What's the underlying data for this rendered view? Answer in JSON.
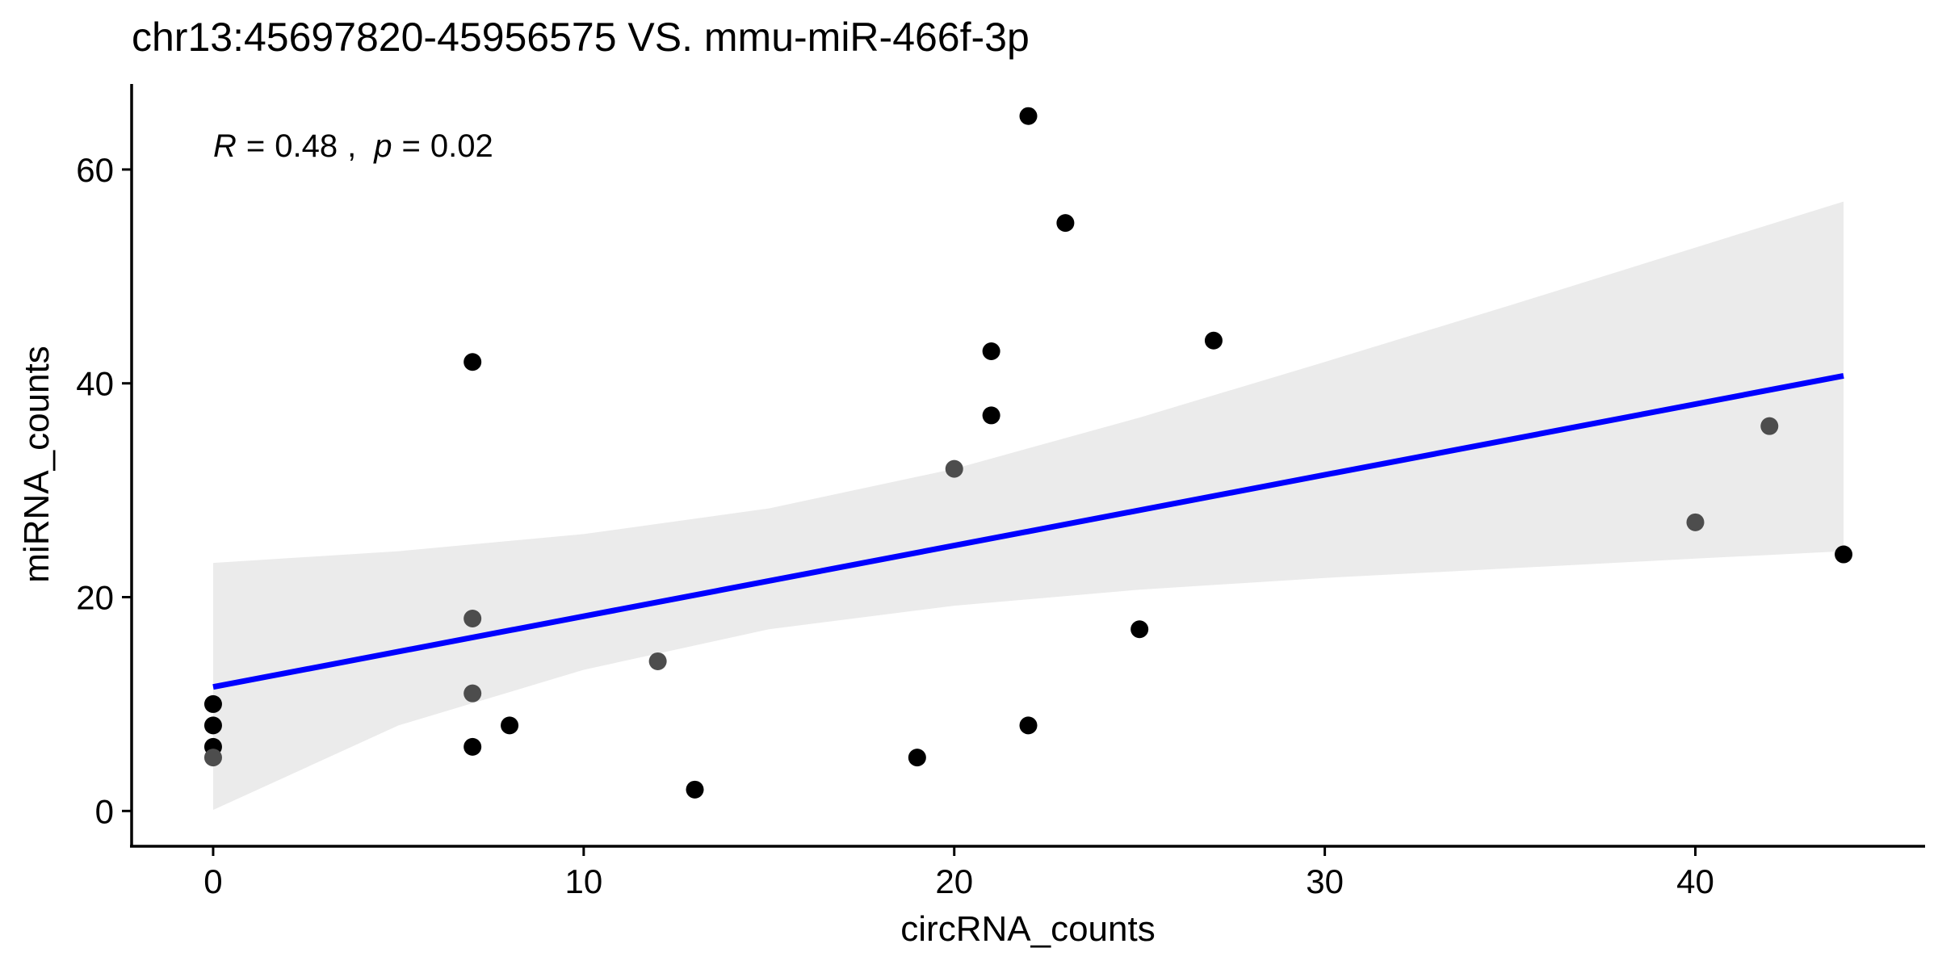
{
  "chart_data": {
    "type": "scatter",
    "title": "chr13:45697820-45956575 VS. mmu-miR-466f-3p",
    "xlabel": "circRNA_counts",
    "ylabel": "miRNA_counts",
    "xlim": [
      -2.2,
      46.2
    ],
    "ylim": [
      -3.3,
      68.0
    ],
    "x_ticks": [
      0,
      10,
      20,
      30,
      40
    ],
    "y_ticks": [
      0,
      20,
      40,
      60
    ],
    "grid": false,
    "legend": "none",
    "annotation": {
      "r_symbol": "R",
      "r_value": "0.48",
      "p_symbol": "p",
      "p_value": "0.02",
      "equals": "=",
      "separator": ","
    },
    "points": [
      {
        "x": 0,
        "y": 10,
        "shade": "dark"
      },
      {
        "x": 0,
        "y": 8,
        "shade": "dark"
      },
      {
        "x": 0,
        "y": 6,
        "shade": "dark"
      },
      {
        "x": 0,
        "y": 5,
        "shade": "gray"
      },
      {
        "x": 7,
        "y": 42,
        "shade": "dark"
      },
      {
        "x": 7,
        "y": 18,
        "shade": "gray"
      },
      {
        "x": 7,
        "y": 11,
        "shade": "gray"
      },
      {
        "x": 7,
        "y": 6,
        "shade": "dark"
      },
      {
        "x": 8,
        "y": 8,
        "shade": "dark"
      },
      {
        "x": 12,
        "y": 14,
        "shade": "gray"
      },
      {
        "x": 13,
        "y": 2,
        "shade": "dark"
      },
      {
        "x": 19,
        "y": 5,
        "shade": "dark"
      },
      {
        "x": 20,
        "y": 32,
        "shade": "gray"
      },
      {
        "x": 21,
        "y": 43,
        "shade": "dark"
      },
      {
        "x": 21,
        "y": 37,
        "shade": "dark"
      },
      {
        "x": 22,
        "y": 65,
        "shade": "dark"
      },
      {
        "x": 22,
        "y": 8,
        "shade": "dark"
      },
      {
        "x": 23,
        "y": 55,
        "shade": "dark"
      },
      {
        "x": 25,
        "y": 17,
        "shade": "dark"
      },
      {
        "x": 27,
        "y": 44,
        "shade": "dark"
      },
      {
        "x": 40,
        "y": 27,
        "shade": "gray"
      },
      {
        "x": 42,
        "y": 36,
        "shade": "gray"
      },
      {
        "x": 44,
        "y": 24,
        "shade": "dark"
      }
    ],
    "fit_line": {
      "x": [
        0,
        44
      ],
      "y": [
        11.6,
        40.7
      ]
    },
    "confidence_band": {
      "x": [
        0,
        5,
        10,
        15,
        20,
        25,
        30,
        35,
        40,
        44
      ],
      "upper": [
        23.2,
        24.3,
        25.9,
        28.3,
        32.0,
        36.8,
        42.0,
        47.3,
        52.7,
        57.0
      ],
      "lower": [
        0.1,
        8.0,
        13.2,
        17.0,
        19.2,
        20.7,
        21.8,
        22.7,
        23.6,
        24.3
      ]
    },
    "colors": {
      "point_dark": "#000000",
      "point_gray": "#4d4d4d",
      "fit_line": "#0000ff",
      "band": "#ebebeb",
      "axis": "#000000"
    }
  }
}
